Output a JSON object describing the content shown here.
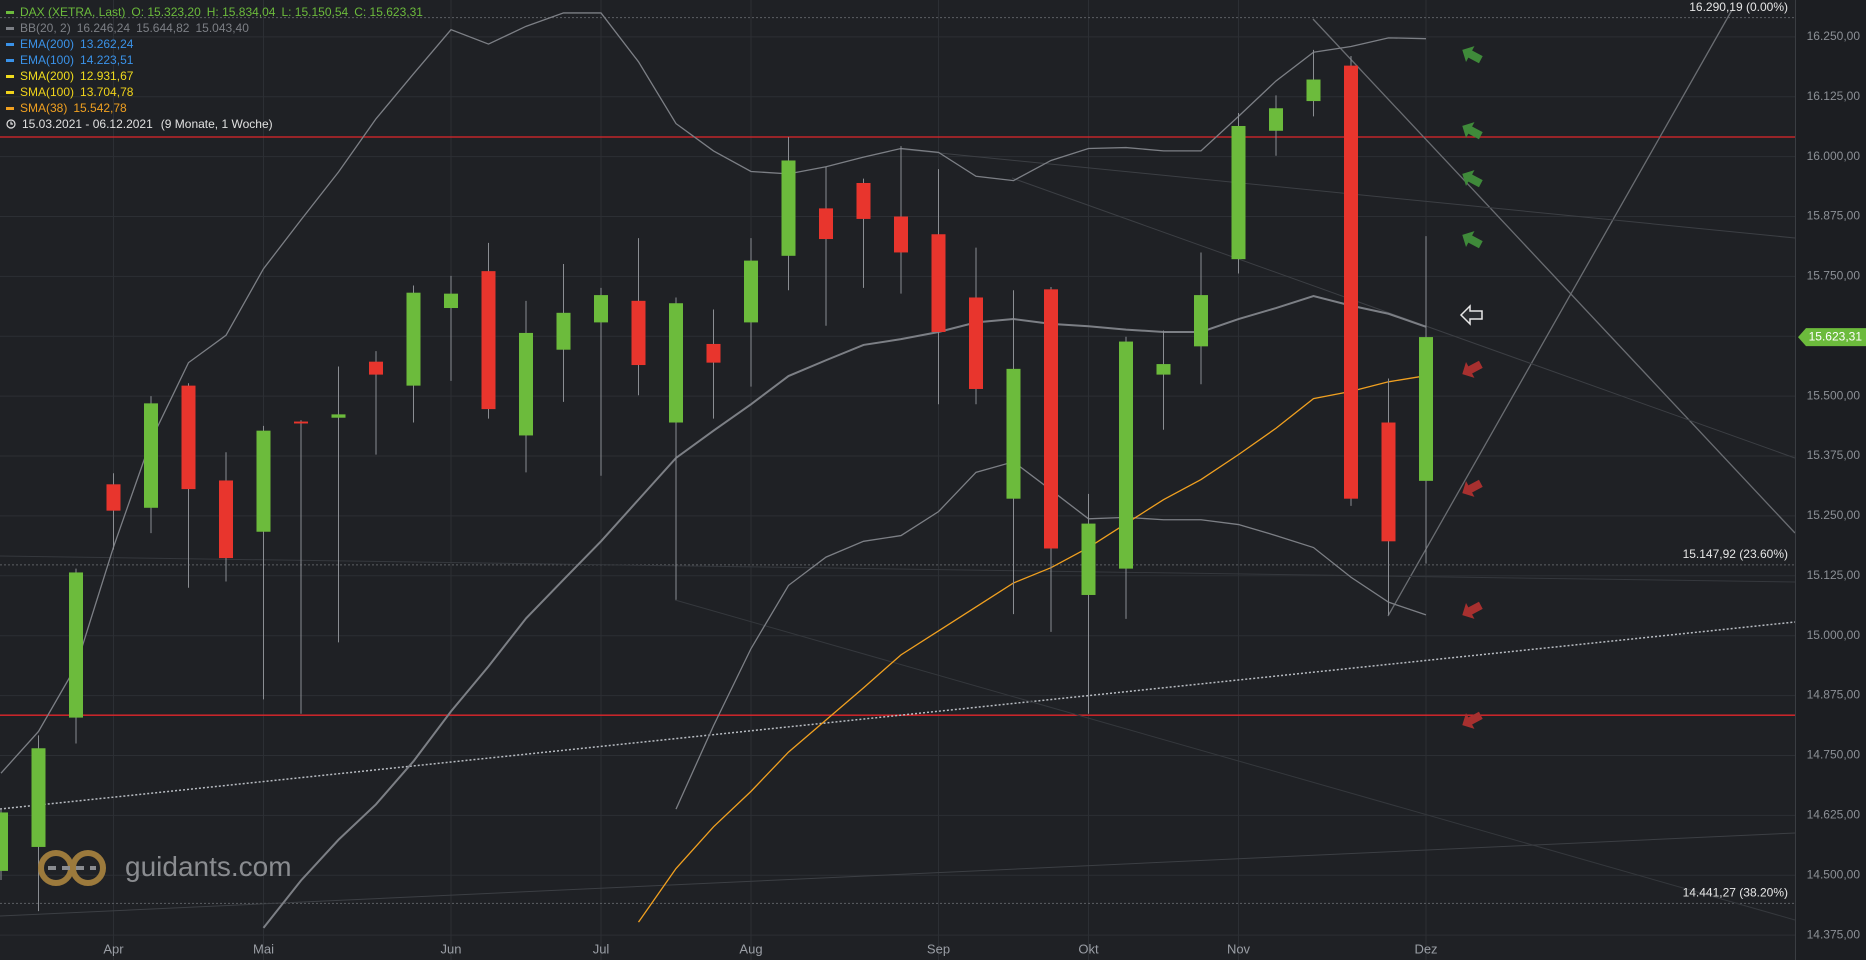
{
  "chart_data": {
    "type": "candlestick",
    "instrument": "DAX (XETRA, Last)",
    "ohlc_labels": [
      "O: 15.323,20",
      "H: 15.834,04",
      "L: 15.150,54",
      "C: 15.623,31"
    ],
    "up_color": "#6cbb3c",
    "down_color": "#e8352d",
    "range": "15.03.2021 - 06.12.2021",
    "range_note": "(9 Monate, 1 Woche)",
    "watermark": "guidants.com",
    "indicators": [
      {
        "name": "BB(20, 2)",
        "color": "#7c7f85",
        "labels": [
          "16.246,24",
          "15.644,82",
          "15.043,40"
        ],
        "bands": [
          [
            14713,
            14800,
            14936,
            15185,
            15408,
            15570,
            15627,
            15766,
            15868,
            15968,
            16079,
            16173,
            16265,
            16235,
            16272,
            16300,
            16300,
            16198,
            16069,
            16012,
            15969,
            15964,
            15979,
            15999,
            16017,
            16009,
            15959,
            15950,
            15992,
            16017,
            16019,
            16012,
            16012,
            16084,
            16158,
            16218,
            16230,
            16248,
            16246.24
          ],
          [
            null,
            null,
            null,
            null,
            null,
            null,
            null,
            14390,
            14489,
            14574,
            14648,
            14738,
            14842,
            14936,
            15036,
            15117,
            15197,
            15284,
            15371,
            15428,
            15483,
            15542,
            15575,
            15607,
            15619,
            15634,
            15654,
            15661,
            15651,
            15646,
            15639,
            15634,
            15634,
            15661,
            15684,
            15709,
            15689,
            15672,
            15644.82
          ],
          [
            null,
            null,
            null,
            null,
            null,
            null,
            null,
            null,
            null,
            null,
            null,
            null,
            null,
            null,
            null,
            null,
            null,
            null,
            14638,
            14812,
            14973,
            15105,
            15164,
            15197,
            15209,
            15259,
            15341,
            15363,
            15304,
            15244,
            15247,
            15242,
            15242,
            15232,
            15209,
            15184,
            15122,
            15070,
            15043.4
          ]
        ]
      },
      {
        "name": "EMA(200)",
        "color": "#3a92e8",
        "labels": [
          "13.262,24"
        ]
      },
      {
        "name": "EMA(100)",
        "color": "#3a92e8",
        "labels": [
          "14.223,51"
        ]
      },
      {
        "name": "SMA(200)",
        "color": "#f0dc1e",
        "labels": [
          "12.931,67"
        ]
      },
      {
        "name": "SMA(100)",
        "color": "#f0d21a",
        "labels": [
          "13.704,78"
        ]
      },
      {
        "name": "SMA(38)",
        "color": "#f0a020",
        "labels": [
          "15.542,78"
        ],
        "values": [
          null,
          null,
          null,
          null,
          null,
          null,
          null,
          null,
          null,
          null,
          null,
          null,
          null,
          null,
          null,
          null,
          null,
          14402,
          14514,
          14601,
          14675,
          14757,
          14824,
          14891,
          14960,
          15010,
          15060,
          15110,
          15142,
          15184,
          15234,
          15284,
          15326,
          15378,
          15433,
          15495,
          15510,
          15530,
          15542.78
        ]
      }
    ],
    "categories": [
      null,
      null,
      null,
      "Apr",
      null,
      null,
      null,
      "Mai",
      null,
      null,
      null,
      null,
      "Jun",
      null,
      null,
      null,
      "Jul",
      null,
      null,
      null,
      "Aug",
      null,
      null,
      null,
      null,
      "Sep",
      null,
      null,
      null,
      "Okt",
      null,
      null,
      null,
      "Nov",
      null,
      null,
      null,
      null,
      "Dez"
    ],
    "open": [
      14509,
      14559,
      14829,
      15316,
      15267,
      15522,
      15324,
      15217,
      15447,
      15455,
      15572,
      15522,
      15684,
      15761,
      15418,
      15597,
      15654,
      15699,
      15445,
      15609,
      15654,
      15793,
      15892,
      15945,
      15875,
      15838,
      15706,
      15286,
      15723,
      15085,
      15140,
      15545,
      15604,
      15786,
      16054,
      16116,
      16190,
      15445,
      15323.2
    ],
    "high": [
      14640,
      14792,
      15140,
      15339,
      15500,
      15527,
      15383,
      15438,
      15450,
      15562,
      15594,
      15731,
      15751,
      15820,
      15699,
      15776,
      15726,
      15830,
      15706,
      15681,
      15830,
      16041,
      15979,
      15954,
      16022,
      15974,
      15810,
      15721,
      15728,
      15296,
      15624,
      15637,
      15800,
      16091,
      16128,
      16223,
      16210,
      15537,
      15834.04
    ],
    "low": [
      14490,
      14425,
      14775,
      15180,
      15214,
      15100,
      15113,
      14867,
      14837,
      14986,
      15378,
      15445,
      15532,
      15453,
      15341,
      15488,
      15334,
      15502,
      15075,
      15453,
      15520,
      15721,
      15647,
      15726,
      15714,
      15483,
      15483,
      15045,
      15008,
      14837,
      15035,
      15430,
      15525,
      15756,
      16002,
      16084,
      15271,
      15043,
      15150.54
    ],
    "close": [
      14631,
      14765,
      15132,
      15261,
      15485,
      15306,
      15162,
      15428,
      15443,
      15462,
      15545,
      15716,
      15714,
      15473,
      15632,
      15674,
      15711,
      15565,
      15694,
      15570,
      15783,
      15992,
      15828,
      15870,
      15800,
      15634,
      15515,
      15557,
      15182,
      15234,
      15614,
      15567,
      15711,
      16064,
      16101,
      16161,
      15286,
      15197,
      15623.31
    ],
    "last_price_label": "15.623,31",
    "ylim": [
      14323,
      16327
    ],
    "yticks": [
      {
        "value": 14375,
        "label": "14.375,00"
      },
      {
        "value": 14500,
        "label": "14.500,00"
      },
      {
        "value": 14625,
        "label": "14.625,00"
      },
      {
        "value": 14750,
        "label": "14.750,00"
      },
      {
        "value": 14875,
        "label": "14.875,00"
      },
      {
        "value": 15000,
        "label": "15.000,00"
      },
      {
        "value": 15125,
        "label": "15.125,00"
      },
      {
        "value": 15250,
        "label": "15.250,00"
      },
      {
        "value": 15375,
        "label": "15.375,00"
      },
      {
        "value": 15500,
        "label": "15.500,00"
      },
      {
        "value": 15625,
        "label": "15.625,00"
      },
      {
        "value": 15750,
        "label": "15.750,00"
      },
      {
        "value": 15875,
        "label": "15.875,00"
      },
      {
        "value": 16000,
        "label": "16.000,00"
      },
      {
        "value": 16125,
        "label": "16.125,00"
      },
      {
        "value": 16250,
        "label": "16.250,00"
      }
    ],
    "grid": true,
    "fib_levels": [
      {
        "value": 16290.19,
        "label": "16.290,19 (0.00%)"
      },
      {
        "value": 15147.92,
        "label": "15.147,92 (23.60%)"
      },
      {
        "value": 14441.27,
        "label": "14.441,27 (38.20%)"
      }
    ],
    "hlines": [
      16041,
      14834
    ],
    "hline_color": "#e0262b"
  }
}
